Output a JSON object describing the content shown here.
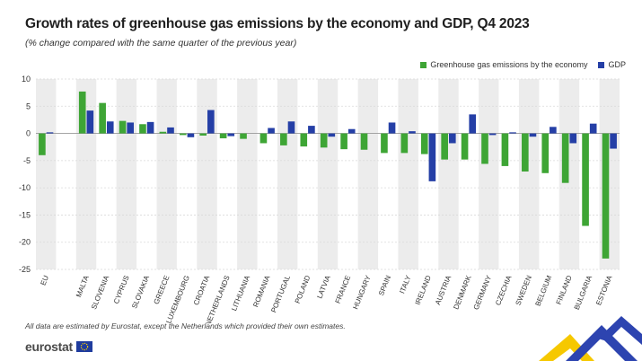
{
  "title": "Growth rates of greenhouse gas emissions by the economy and GDP, Q4 2023",
  "subtitle": "(% change compared with the same quarter of the previous year)",
  "footnote": "All data are estimated by Eurostat, except the Netherlands which provided their own estimates.",
  "logo_text": "eurostat",
  "colors": {
    "ghg": "#3ea535",
    "gdp": "#253fa6",
    "band": "#ececec"
  },
  "chart_data": {
    "type": "bar",
    "title": "Growth rates of greenhouse gas emissions by the economy and GDP, Q4 2023",
    "xlabel": "",
    "ylabel": "",
    "ylim": [
      -25,
      10
    ],
    "yticks": [
      10,
      5,
      0,
      -5,
      -10,
      -15,
      -20,
      -25
    ],
    "legend_position": "top-right",
    "categories": [
      "EU",
      "MALTA",
      "SLOVENIA",
      "CYPRUS",
      "SLOVAKIA",
      "GREECE",
      "LUXEMBOURG",
      "CROATIA",
      "NETHERLANDS",
      "LITHUANIA",
      "ROMANIA",
      "PORTUGAL",
      "POLAND",
      "LATVIA",
      "FRANCE",
      "HUNGARY",
      "SPAIN",
      "ITALY",
      "IRELAND",
      "AUSTRIA",
      "DENMARK",
      "GERMANY",
      "CZECHIA",
      "SWEDEN",
      "BELGIUM",
      "FINLAND",
      "BULGARIA",
      "ESTONIA"
    ],
    "series": [
      {
        "name": "Greenhouse gas emissions by the economy",
        "values": [
          -4.0,
          7.7,
          5.6,
          2.3,
          1.7,
          0.3,
          -0.3,
          -0.4,
          -0.9,
          -1.0,
          -1.8,
          -2.2,
          -2.4,
          -2.6,
          -2.9,
          -3.0,
          -3.6,
          -3.6,
          -3.8,
          -4.8,
          -4.8,
          -5.6,
          -6.0,
          -7.0,
          -7.3,
          -9.1,
          -17.0,
          -23.0
        ]
      },
      {
        "name": "GDP",
        "values": [
          0.2,
          4.2,
          2.2,
          2.0,
          2.1,
          1.1,
          -0.7,
          4.3,
          -0.5,
          null,
          1.0,
          2.2,
          1.4,
          -0.6,
          0.8,
          null,
          2.0,
          0.4,
          -8.8,
          -1.8,
          3.5,
          -0.3,
          0.2,
          -0.6,
          1.2,
          -1.8,
          1.8,
          -2.8
        ]
      }
    ]
  }
}
